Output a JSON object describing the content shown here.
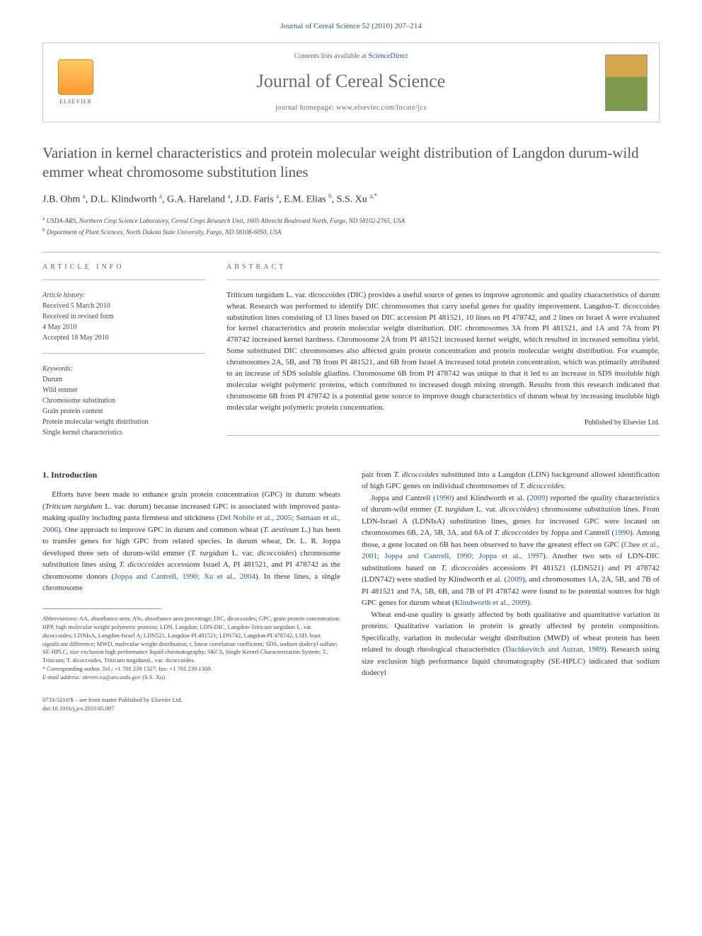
{
  "journal_ref": "Journal of Cereal Science 52 (2010) 207–214",
  "header": {
    "contents_text": "Contents lists available at ",
    "contents_link": "ScienceDirect",
    "journal_name": "Journal of Cereal Science",
    "homepage_label": "journal homepage: ",
    "homepage_url": "www.elsevier.com/locate/jcs",
    "publisher": "ELSEVIER"
  },
  "article": {
    "title": "Variation in kernel characteristics and protein molecular weight distribution of Langdon durum-wild emmer wheat chromosome substitution lines",
    "authors_html": "J.B. Ohm <sup>a</sup>, D.L. Klindworth <sup>a</sup>, G.A. Hareland <sup>a</sup>, J.D. Faris <sup>a</sup>, E.M. Elias <sup>b</sup>, S.S. Xu <sup>a,*</sup>",
    "affiliations": [
      "a USDA-ARS, Northern Crop Science Laboratory, Cereal Crops Research Unit, 1605 Albrecht Boulevard North, Fargo, ND 58102-2765, USA",
      "b Department of Plant Sciences, North Dakota State University, Fargo, ND 58108-6050, USA"
    ]
  },
  "info": {
    "label": "ARTICLE INFO",
    "history_label": "Article history:",
    "history": [
      "Received 5 March 2010",
      "Received in revised form",
      "4 May 2010",
      "Accepted 18 May 2010"
    ],
    "keywords_label": "Keywords:",
    "keywords": [
      "Durum",
      "Wild emmer",
      "Chromosome substitution",
      "Grain protein content",
      "Protein molecular weight distribution",
      "Single kernel characteristics"
    ]
  },
  "abstract": {
    "label": "ABSTRACT",
    "text": "Triticum turgidum L. var. dicoccoides (DIC) provides a useful source of genes to improve agronomic and quality characteristics of durum wheat. Research was performed to identify DIC chromosomes that carry useful genes for quality improvement. Langdon-T. dicoccoides substitution lines consisting of 13 lines based on DIC accession PI 481521, 10 lines on PI 478742, and 2 lines on Israel A were evaluated for kernel characteristics and protein molecular weight distribution. DIC chromosomes 3A from PI 481521, and 1A and 7A from PI 478742 increased kernel hardness. Chromosome 2A from PI 481521 increased kernel weight, which resulted in increased semolina yield. Some substituted DIC chromosomes also affected grain protein concentration and protein molecular weight distribution. For example, chromosomes 2A, 5B, and 7B from PI 481521, and 6B from Israel A increased total protein concentration, which was primarily attributed to an increase of SDS soluble gliadins. Chromosome 6B from PI 478742 was unique in that it led to an increase in SDS insoluble high molecular weight polymeric proteins, which contributed to increased dough mixing strength. Results from this research indicated that chromosome 6B from PI 478742 is a potential gene source to improve dough characteristics of durum wheat by increasing insoluble high molecular weight polymeric protein concentration.",
    "published_by": "Published by Elsevier Ltd."
  },
  "intro": {
    "heading": "1. Introduction",
    "col1_p1": "Efforts have been made to enhance grain protein concentration (GPC) in durum wheats (Triticum turgidum L. var. durum) because increased GPC is associated with improved pasta-making quality including pasta firmness and stickiness (Del Nobile et al., 2005; Samaan et al., 2006). One approach to improve GPC in durum and common wheat (T. aestivum L.) has been to transfer genes for high GPC from related species. In durum wheat, Dr. L. R. Joppa developed three sets of durum-wild emmer (T. turgidum L. var. dicoccoides) chromosome substitution lines using T. dicoccoides accessions Israel A, PI 481521, and PI 478742 as the chromosome donors (Joppa and Cantrell, 1990; Xu et al., 2004). In these lines, a single chromosome",
    "col2_p1": "pair from T. dicoccoides substituted into a Langdon (LDN) background allowed identification of high GPC genes on individual chromosomes of T. dicoccoides.",
    "col2_p2": "Joppa and Cantrell (1990) and Klindworth et al. (2009) reported the quality characteristics of durum-wild emmer (T. turgidum L. var. dicoccoides) chromosome substitution lines. From LDN-Israel A (LDNIsA) substitution lines, genes for increased GPC were located on chromosomes 6B, 2A, 5B, 3A, and 6A of T. dicoccoides by Joppa and Cantrell (1990). Among those, a gene located on 6B has been observed to have the greatest effect on GPC (Chee et al., 2001; Joppa and Cantrell, 1990; Joppa et al., 1997). Another two sets of LDN-DIC substitutions based on T. dicoccoides accessions PI 481521 (LDN521) and PI 478742 (LDN742) were studied by Klindworth et al. (2009), and chromosomes 1A, 2A, 5B, and 7B of PI 481521 and 7A, 5B, 6B, and 7B of PI 478742 were found to be potential sources for high GPC genes for durum wheat (Klindworth et al., 2009).",
    "col2_p3": "Wheat end-use quality is greatly affected by both qualitative and quantitative variation in proteins. Qualitative variation in protein is greatly affected by protein composition. Specifically, variation in molecular weight distribution (MWD) of wheat protein has been related to dough rheological characteristics (Dachkevitch and Autran, 1989). Research using size exclusion high performance liquid chromatography (SE-HPLC) indicated that sodium dodecyl"
  },
  "footnotes": {
    "abbrev_label": "Abbreviations:",
    "abbrev_text": " AA, absorbance area; A%, absorbance area percentage; DIC, dicoccoides; GPC, grain protein concentration; HPP, high molecular weight polymeric proteins; LDN, Langdon; LDN-DIC, Langdon-Triticum turgidum L. var. dicoccoides; LDNIsA, Langdon-Israel A; LDN521, Langdon-PI 481521; LDN742, Langdon-PI 478742; LSD, least significant difference; MWD, molecular weight distribution; r, linear correlation coefficient; SDS, sodium dodecyl sulfate; SE-HPLC, size exclusion high performance liquid chromatography; SKCS, Single Kernel Characterization System; T., Triticum; T. dicoccoides, Triticum turgidumL. var. dicoccoides.",
    "corresponding": "* Corresponding author. Tel.: +1 701 239 1327; fax: +1 701 239 1369.",
    "email_label": "E-mail address: ",
    "email": "steven.xu@ars.usda.gov",
    "email_suffix": " (S.S. Xu)."
  },
  "bottom": {
    "issn": "0733-5210/$ – see front matter Published by Elsevier Ltd.",
    "doi": "doi:10.1016/j.jcs.2010.05.007"
  },
  "colors": {
    "link": "#2a5a8a",
    "text": "#333333",
    "heading_gray": "#575757",
    "border": "#cccccc"
  }
}
